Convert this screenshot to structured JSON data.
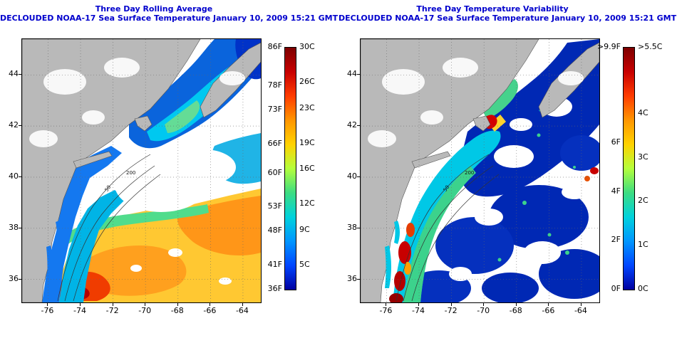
{
  "colors": {
    "title": "#0000cd",
    "land": "#b9b9b9",
    "frame": "#000000",
    "cloud": "#ffffff"
  },
  "colorbar_gradient": [
    "#7d0000",
    "#c80000",
    "#ff3c00",
    "#ff9600",
    "#ffd200",
    "#b4ff3c",
    "#3cdc82",
    "#00d2dc",
    "#0096ff",
    "#0046ff",
    "#0000a0"
  ],
  "panels": [
    {
      "title": "Three Day Rolling Average",
      "subtitle": "DECLOUDED NOAA-17 Sea Surface Temperature January 10, 2009 15:21 GMT",
      "x_ticks": [
        "-76",
        "-74",
        "-72",
        "-70",
        "-68",
        "-66",
        "-64"
      ],
      "y_ticks": [
        "44",
        "42",
        "40",
        "38",
        "36"
      ],
      "lon_range": [
        -77.6,
        -62.9
      ],
      "lat_range": [
        35.1,
        45.4
      ],
      "contour_labels": [
        "200",
        "50"
      ],
      "colorbar": {
        "f_labels": [
          {
            "t": "86F",
            "f": 0.0
          },
          {
            "t": "78F",
            "f": 0.16
          },
          {
            "t": "73F",
            "f": 0.26
          },
          {
            "t": "66F",
            "f": 0.4
          },
          {
            "t": "60F",
            "f": 0.52
          },
          {
            "t": "53F",
            "f": 0.66
          },
          {
            "t": "48F",
            "f": 0.76
          },
          {
            "t": "41F",
            "f": 0.9
          },
          {
            "t": "36F",
            "f": 1.0
          }
        ],
        "c_labels": [
          {
            "t": "30C",
            "f": 0.0
          },
          {
            "t": "26C",
            "f": 0.144
          },
          {
            "t": "23C",
            "f": 0.252
          },
          {
            "t": "19C",
            "f": 0.396
          },
          {
            "t": "16C",
            "f": 0.504
          },
          {
            "t": "12C",
            "f": 0.648
          },
          {
            "t": "9C",
            "f": 0.756
          },
          {
            "t": "5C",
            "f": 0.9
          }
        ]
      }
    },
    {
      "title": "Three Day Temperature Variability",
      "subtitle": "DECLOUDED NOAA-17 Sea Surface Temperature January 10, 2009 15:21 GMT",
      "x_ticks": [
        "-76",
        "-74",
        "-72",
        "-70",
        "-68",
        "-66",
        "-64"
      ],
      "y_ticks": [
        "44",
        "42",
        "40",
        "38",
        "36"
      ],
      "lon_range": [
        -77.6,
        -62.9
      ],
      "lat_range": [
        35.1,
        45.4
      ],
      "contour_labels": [
        "200",
        "50"
      ],
      "colorbar": {
        "f_labels": [
          {
            "t": ">9.9F",
            "f": 0.0
          },
          {
            "t": "6F",
            "f": 0.394
          },
          {
            "t": "4F",
            "f": 0.596
          },
          {
            "t": "2F",
            "f": 0.798
          },
          {
            "t": "0F",
            "f": 1.0
          }
        ],
        "c_labels": [
          {
            "t": ">5.5C",
            "f": 0.0
          },
          {
            "t": "4C",
            "f": 0.273
          },
          {
            "t": "3C",
            "f": 0.455
          },
          {
            "t": "2C",
            "f": 0.636
          },
          {
            "t": "1C",
            "f": 0.818
          },
          {
            "t": "0C",
            "f": 1.0
          }
        ]
      }
    }
  ]
}
